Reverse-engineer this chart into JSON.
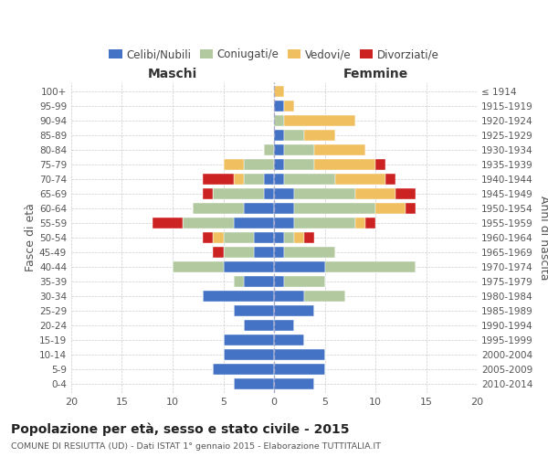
{
  "age_groups": [
    "0-4",
    "5-9",
    "10-14",
    "15-19",
    "20-24",
    "25-29",
    "30-34",
    "35-39",
    "40-44",
    "45-49",
    "50-54",
    "55-59",
    "60-64",
    "65-69",
    "70-74",
    "75-79",
    "80-84",
    "85-89",
    "90-94",
    "95-99",
    "100+"
  ],
  "birth_years": [
    "2010-2014",
    "2005-2009",
    "2000-2004",
    "1995-1999",
    "1990-1994",
    "1985-1989",
    "1980-1984",
    "1975-1979",
    "1970-1974",
    "1965-1969",
    "1960-1964",
    "1955-1959",
    "1950-1954",
    "1945-1949",
    "1940-1944",
    "1935-1939",
    "1930-1934",
    "1925-1929",
    "1920-1924",
    "1915-1919",
    "≤ 1914"
  ],
  "maschi": {
    "celibi": [
      4,
      6,
      5,
      5,
      3,
      4,
      7,
      3,
      5,
      2,
      2,
      4,
      3,
      1,
      1,
      0,
      0,
      0,
      0,
      0,
      0
    ],
    "coniugati": [
      0,
      0,
      0,
      0,
      0,
      0,
      0,
      1,
      5,
      3,
      3,
      5,
      5,
      5,
      2,
      3,
      1,
      0,
      0,
      0,
      0
    ],
    "vedovi": [
      0,
      0,
      0,
      0,
      0,
      0,
      0,
      0,
      0,
      0,
      1,
      0,
      0,
      0,
      1,
      2,
      0,
      0,
      0,
      0,
      0
    ],
    "divorziati": [
      0,
      0,
      0,
      0,
      0,
      0,
      0,
      0,
      0,
      1,
      1,
      3,
      0,
      1,
      3,
      0,
      0,
      0,
      0,
      0,
      0
    ]
  },
  "femmine": {
    "nubili": [
      4,
      5,
      5,
      3,
      2,
      4,
      3,
      1,
      5,
      1,
      1,
      2,
      2,
      2,
      1,
      1,
      1,
      1,
      0,
      1,
      0
    ],
    "coniugate": [
      0,
      0,
      0,
      0,
      0,
      0,
      4,
      4,
      9,
      5,
      1,
      6,
      8,
      6,
      5,
      3,
      3,
      2,
      1,
      0,
      0
    ],
    "vedove": [
      0,
      0,
      0,
      0,
      0,
      0,
      0,
      0,
      0,
      0,
      1,
      1,
      3,
      4,
      5,
      6,
      5,
      3,
      7,
      1,
      1
    ],
    "divorziate": [
      0,
      0,
      0,
      0,
      0,
      0,
      0,
      0,
      0,
      0,
      1,
      1,
      1,
      2,
      1,
      1,
      0,
      0,
      0,
      0,
      0
    ]
  },
  "colors": {
    "celibi_nubili": "#4472C4",
    "coniugati": "#B2C9A0",
    "vedovi": "#F0C060",
    "divorziati": "#CC2222"
  },
  "xlim": 20,
  "title": "Popolazione per età, sesso e stato civile - 2015",
  "subtitle": "COMUNE DI RESIUTTA (UD) - Dati ISTAT 1° gennaio 2015 - Elaborazione TUTTITALIA.IT",
  "ylabel_left": "Fasce di età",
  "ylabel_right": "Anni di nascita",
  "xlabel_maschi": "Maschi",
  "xlabel_femmine": "Femmine",
  "background_color": "#ffffff",
  "grid_color": "#cccccc"
}
